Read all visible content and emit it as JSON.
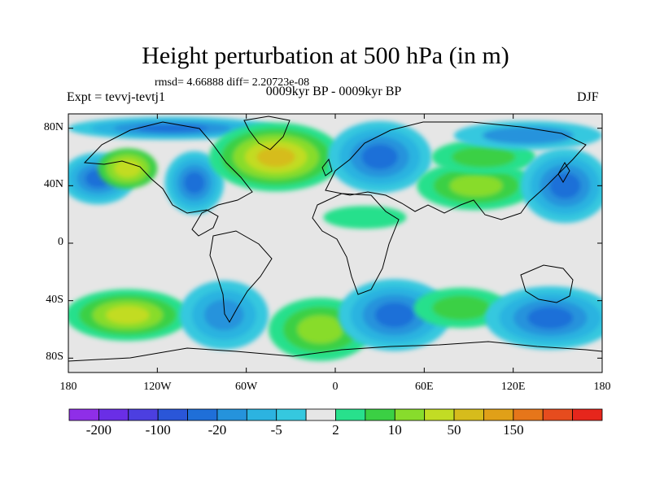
{
  "title": "Height perturbation at 500 hPa (in m)",
  "stats": "rmsd= 4.66888 diff= 2.20723e-08",
  "expt": "Expt = tevvj-tevtj1",
  "center_label": "0009kyr BP - 0009kyr BP",
  "season": "DJF",
  "y_ticks": [
    {
      "value": 80,
      "label": "80N"
    },
    {
      "value": 40,
      "label": "40N"
    },
    {
      "value": 0,
      "label": "0"
    },
    {
      "value": -40,
      "label": "40S"
    },
    {
      "value": -80,
      "label": "80S"
    }
  ],
  "x_ticks": [
    {
      "value": -180,
      "label": "180"
    },
    {
      "value": -120,
      "label": "120W"
    },
    {
      "value": -60,
      "label": "60W"
    },
    {
      "value": 0,
      "label": "0"
    },
    {
      "value": 60,
      "label": "60E"
    },
    {
      "value": 120,
      "label": "120E"
    },
    {
      "value": 180,
      "label": "180"
    }
  ],
  "colorbar": {
    "colors": [
      "#8f2ee8",
      "#6a2ee6",
      "#4c3fe0",
      "#2a56d8",
      "#1f6fd8",
      "#2593dc",
      "#2cb3e0",
      "#35c8df",
      "#e6e6e6",
      "#28e08c",
      "#3bd044",
      "#88dc2c",
      "#c2dc24",
      "#d6bc1c",
      "#e0a018",
      "#e6761a",
      "#e64c1e",
      "#e6261c"
    ],
    "labels": [
      {
        "index": 1,
        "text": "-200"
      },
      {
        "index": 3,
        "text": "-100"
      },
      {
        "index": 5,
        "text": "-20"
      },
      {
        "index": 7,
        "text": "-5"
      },
      {
        "index": 9,
        "text": "2"
      },
      {
        "index": 11,
        "text": "10"
      },
      {
        "index": 13,
        "text": "50"
      },
      {
        "index": 15,
        "text": "150"
      }
    ]
  },
  "map": {
    "lon_range": [
      -180,
      180
    ],
    "lat_range": [
      -90,
      90
    ],
    "background": "#e6e6e6",
    "contours": [
      {
        "lon": -160,
        "lat": 45,
        "rlon": 25,
        "rlat": 18,
        "colors": [
          "#35c8df",
          "#2cb3e0",
          "#2593dc",
          "#1f6fd8"
        ]
      },
      {
        "lon": -140,
        "lat": 52,
        "rlon": 20,
        "rlat": 14,
        "colors": [
          "#3bd044",
          "#88dc2c",
          "#c2dc24"
        ]
      },
      {
        "lon": -95,
        "lat": 42,
        "rlon": 20,
        "rlat": 22,
        "colors": [
          "#35c8df",
          "#2cb3e0",
          "#2593dc",
          "#1f6fd8"
        ]
      },
      {
        "lon": -110,
        "lat": 80,
        "rlon": 70,
        "rlat": 8,
        "colors": [
          "#35c8df",
          "#2cb3e0",
          "#2593dc",
          "#1f6fd8"
        ]
      },
      {
        "lon": -40,
        "lat": 60,
        "rlon": 45,
        "rlat": 24,
        "colors": [
          "#28e08c",
          "#3bd044",
          "#88dc2c",
          "#c2dc24",
          "#d6bc1c"
        ]
      },
      {
        "lon": 30,
        "lat": 60,
        "rlon": 35,
        "rlat": 25,
        "colors": [
          "#35c8df",
          "#2cb3e0",
          "#2593dc",
          "#1f6fd8"
        ]
      },
      {
        "lon": 95,
        "lat": 40,
        "rlon": 40,
        "rlat": 17,
        "colors": [
          "#28e08c",
          "#3bd044",
          "#88dc2c"
        ]
      },
      {
        "lon": 100,
        "lat": 60,
        "rlon": 35,
        "rlat": 12,
        "colors": [
          "#28e08c",
          "#3bd044"
        ]
      },
      {
        "lon": 155,
        "lat": 40,
        "rlon": 30,
        "rlat": 26,
        "colors": [
          "#35c8df",
          "#2cb3e0",
          "#2593dc",
          "#1f6fd8"
        ]
      },
      {
        "lon": -140,
        "lat": -50,
        "rlon": 42,
        "rlat": 18,
        "colors": [
          "#28e08c",
          "#3bd044",
          "#88dc2c",
          "#c2dc24"
        ]
      },
      {
        "lon": -75,
        "lat": -50,
        "rlon": 30,
        "rlat": 24,
        "colors": [
          "#35c8df",
          "#2cb3e0",
          "#2593dc"
        ]
      },
      {
        "lon": -10,
        "lat": -60,
        "rlon": 35,
        "rlat": 22,
        "colors": [
          "#28e08c",
          "#3bd044",
          "#88dc2c"
        ]
      },
      {
        "lon": 40,
        "lat": -50,
        "rlon": 38,
        "rlat": 25,
        "colors": [
          "#35c8df",
          "#2cb3e0",
          "#2593dc",
          "#1f6fd8"
        ]
      },
      {
        "lon": 85,
        "lat": -45,
        "rlon": 32,
        "rlat": 14,
        "colors": [
          "#28e08c",
          "#3bd044"
        ]
      },
      {
        "lon": 145,
        "lat": -52,
        "rlon": 44,
        "rlat": 22,
        "colors": [
          "#35c8df",
          "#2cb3e0",
          "#2593dc",
          "#1f6fd8"
        ]
      },
      {
        "lon": 20,
        "lat": 18,
        "rlon": 28,
        "rlat": 8,
        "colors": [
          "#28e08c"
        ]
      },
      {
        "lon": 130,
        "lat": 75,
        "rlon": 50,
        "rlat": 10,
        "colors": [
          "#35c8df",
          "#2593dc"
        ]
      }
    ]
  }
}
